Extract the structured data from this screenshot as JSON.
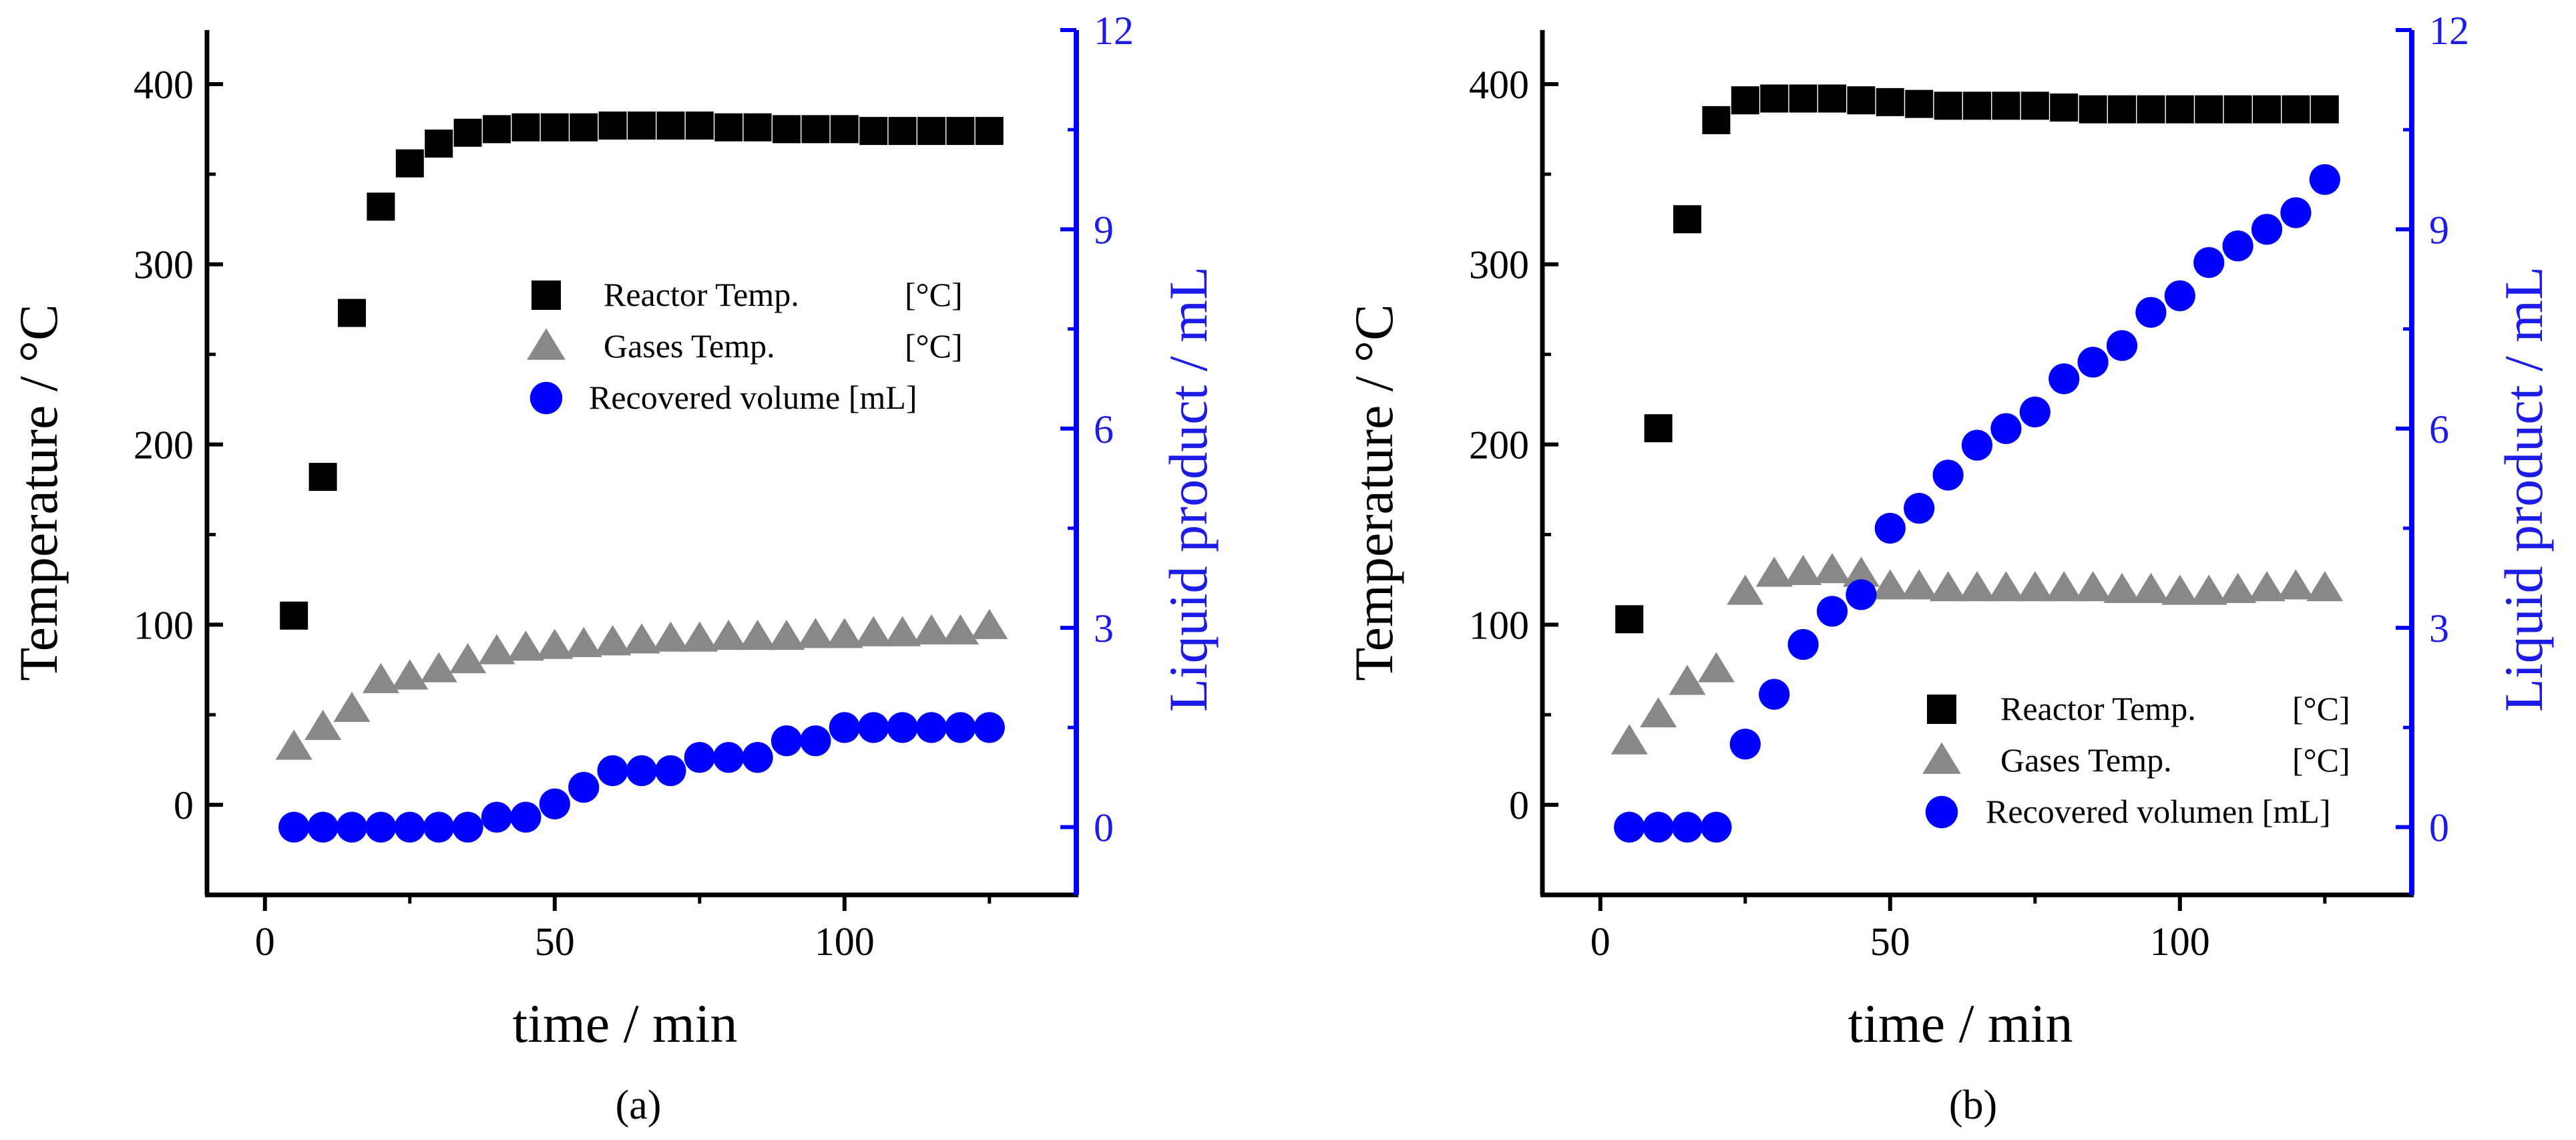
{
  "colors": {
    "black": "#000000",
    "gray": "#888888",
    "blue": "#0000ff",
    "blue_text": "#1c1ce6"
  },
  "chart_data": [
    {
      "type": "scatter",
      "panel_label": "(a)",
      "xlabel": "time / min",
      "ylabel": "Temperature / °C",
      "ylabel_right": "Liquid product / mL",
      "xlim": [
        -10,
        140
      ],
      "ylim": [
        -50,
        430
      ],
      "ylim_right": [
        -1.02,
        12
      ],
      "xticks": [
        0,
        50,
        100
      ],
      "yticks": [
        0,
        100,
        200,
        300,
        400
      ],
      "yticks_right": [
        0,
        3,
        6,
        9,
        12
      ],
      "xtick_labels": [
        "0",
        "50",
        "100"
      ],
      "ytick_labels": [
        "0",
        "100",
        "200",
        "300",
        "400"
      ],
      "ytick_right_labels": [
        "0",
        "3",
        "6",
        "9",
        "12"
      ],
      "legend_position": "center-right",
      "legend": [
        {
          "label": "Reactor Temp.",
          "unit_text": "[°C]"
        },
        {
          "label": "Gases Temp.",
          "unit_text": "[°C]"
        },
        {
          "label": "Recovered volume [mL]",
          "unit_text": ""
        }
      ],
      "x": [
        5,
        10,
        15,
        20,
        25,
        30,
        35,
        40,
        45,
        50,
        55,
        60,
        65,
        70,
        75,
        80,
        85,
        90,
        95,
        100,
        105,
        110,
        115,
        120,
        125
      ],
      "series": [
        {
          "name": "Reactor Temp.",
          "axis": "left",
          "marker": "square",
          "values": [
            105,
            182,
            273,
            332,
            356,
            367,
            373,
            375,
            376,
            376,
            376,
            377,
            377,
            377,
            377,
            376,
            376,
            375,
            375,
            375,
            374,
            374,
            374,
            374,
            374
          ]
        },
        {
          "name": "Gases Temp.",
          "axis": "left",
          "marker": "triangle",
          "values": [
            32,
            43,
            53,
            69,
            71,
            75,
            80,
            85,
            87,
            88,
            89,
            90,
            91,
            92,
            92,
            93,
            93,
            93,
            94,
            94,
            95,
            95,
            96,
            96,
            99
          ]
        },
        {
          "name": "Recovered volume",
          "axis": "right",
          "marker": "circle",
          "values": [
            0,
            0,
            0,
            0,
            0,
            0,
            0,
            0.15,
            0.15,
            0.35,
            0.6,
            0.85,
            0.85,
            0.85,
            1.05,
            1.05,
            1.05,
            1.3,
            1.3,
            1.5,
            1.5,
            1.5,
            1.5,
            1.5,
            1.5
          ]
        }
      ]
    },
    {
      "type": "scatter",
      "panel_label": "(b)",
      "xlabel": "time / min",
      "ylabel": "Temperature / °C",
      "ylabel_right": "Liquid product / mL",
      "xlim": [
        -10,
        140
      ],
      "ylim": [
        -50,
        430
      ],
      "ylim_right": [
        -1.02,
        12
      ],
      "xticks": [
        0,
        50,
        100
      ],
      "yticks": [
        0,
        100,
        200,
        300,
        400
      ],
      "yticks_right": [
        0,
        3,
        6,
        9,
        12
      ],
      "xtick_labels": [
        "0",
        "50",
        "100"
      ],
      "ytick_labels": [
        "0",
        "100",
        "200",
        "300",
        "400"
      ],
      "ytick_right_labels": [
        "0",
        "3",
        "6",
        "9",
        "12"
      ],
      "legend_position": "bottom-right",
      "legend": [
        {
          "label": "Reactor Temp.",
          "unit_text": "[°C]"
        },
        {
          "label": "Gases Temp.",
          "unit_text": "[°C]"
        },
        {
          "label": "Recovered volumen [mL]",
          "unit_text": ""
        }
      ],
      "x": [
        5,
        10,
        15,
        20,
        25,
        30,
        35,
        40,
        45,
        50,
        55,
        60,
        65,
        70,
        75,
        80,
        85,
        90,
        95,
        100,
        105,
        110,
        115,
        120,
        125
      ],
      "series": [
        {
          "name": "Reactor Temp.",
          "axis": "left",
          "marker": "square",
          "values": [
            103,
            209,
            325,
            380,
            391,
            392,
            392,
            392,
            391,
            390,
            389,
            388,
            388,
            388,
            388,
            387,
            386,
            386,
            386,
            386,
            386,
            386,
            386,
            386,
            386
          ]
        },
        {
          "name": "Gases Temp.",
          "axis": "left",
          "marker": "triangle",
          "values": [
            35,
            50,
            68,
            75,
            118,
            128,
            129,
            130,
            128,
            121,
            121,
            120,
            120,
            120,
            120,
            120,
            120,
            119,
            119,
            118,
            118,
            119,
            120,
            121,
            120
          ]
        },
        {
          "name": "Recovered volumen",
          "axis": "right",
          "marker": "circle",
          "values": [
            0,
            0,
            0,
            0,
            1.25,
            2.0,
            2.75,
            3.25,
            3.5,
            4.5,
            4.8,
            5.3,
            5.75,
            6.0,
            6.25,
            6.75,
            7.0,
            7.25,
            7.75,
            8.0,
            8.5,
            8.75,
            9.0,
            9.25,
            9.75
          ]
        }
      ]
    }
  ]
}
